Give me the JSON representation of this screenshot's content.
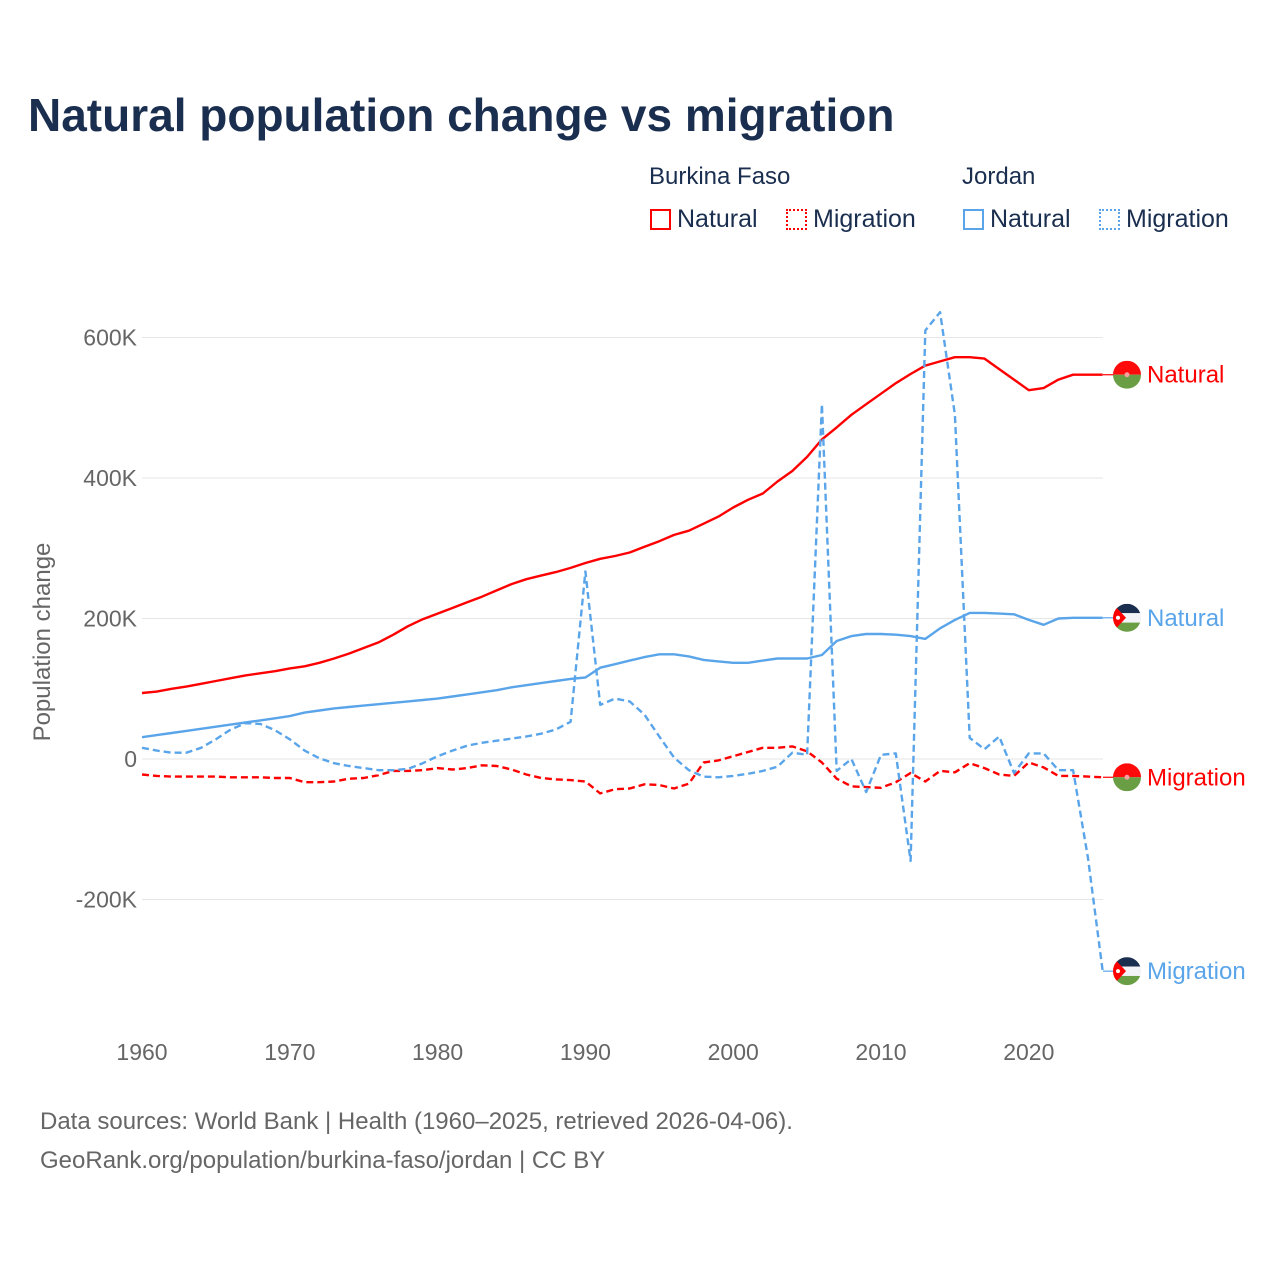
{
  "title": "Natural population change vs migration",
  "legend": {
    "groups": [
      {
        "name": "Burkina Faso",
        "items": [
          "Natural",
          "Migration"
        ]
      },
      {
        "name": "Jordan",
        "items": [
          "Natural",
          "Migration"
        ]
      }
    ]
  },
  "colors": {
    "burkina": "#ff0000",
    "jordan": "#5aa5ea"
  },
  "footer": {
    "line1": "Data sources: World Bank | Health (1960–2025, retrieved 2026-04-06).",
    "line2": "GeoRank.org/population/burkina-faso/jordan | CC BY"
  },
  "chart_data": {
    "type": "line",
    "title": "Natural population change vs migration",
    "xlabel": "",
    "ylabel": "Population change",
    "xlim": [
      1960,
      2025
    ],
    "ylim": [
      -300000,
      650000
    ],
    "x_ticks": [
      1960,
      1970,
      1980,
      1990,
      2000,
      2010,
      2020
    ],
    "x_tick_labels": [
      "1960",
      "1970",
      "1980",
      "1990",
      "2000",
      "2010",
      "2020"
    ],
    "y_ticks": [
      -200000,
      0,
      200000,
      400000,
      600000
    ],
    "y_tick_labels": [
      "-200K",
      "0",
      "200K",
      "400K",
      "600K"
    ],
    "grid": true,
    "legend_placement": "top-right",
    "x": [
      1960,
      1961,
      1962,
      1963,
      1964,
      1965,
      1966,
      1967,
      1968,
      1969,
      1970,
      1971,
      1972,
      1973,
      1974,
      1975,
      1976,
      1977,
      1978,
      1979,
      1980,
      1981,
      1982,
      1983,
      1984,
      1985,
      1986,
      1987,
      1988,
      1989,
      1990,
      1991,
      1992,
      1993,
      1994,
      1995,
      1996,
      1997,
      1998,
      1999,
      2000,
      2001,
      2002,
      2003,
      2004,
      2005,
      2006,
      2007,
      2008,
      2009,
      2010,
      2011,
      2012,
      2013,
      2014,
      2015,
      2016,
      2017,
      2018,
      2019,
      2020,
      2021,
      2022,
      2023,
      2024,
      2025
    ],
    "series": [
      {
        "name": "Burkina Faso Natural",
        "country": "Burkina Faso",
        "kind": "Natural",
        "end_label": "Natural",
        "color": "#ff0000",
        "dashed": false,
        "values": [
          94000,
          96000,
          100000,
          103000,
          107000,
          111000,
          115000,
          119000,
          122000,
          125000,
          129000,
          132000,
          137000,
          143000,
          150000,
          158000,
          166000,
          177000,
          189000,
          199000,
          207000,
          215000,
          223000,
          231000,
          240000,
          249000,
          256000,
          261000,
          266000,
          272000,
          279000,
          285000,
          289000,
          294000,
          302000,
          310000,
          319000,
          325000,
          335000,
          345000,
          358000,
          369000,
          378000,
          395000,
          410000,
          430000,
          455000,
          472000,
          490000,
          505000,
          520000,
          535000,
          548000,
          560000,
          566000,
          572000,
          572000,
          570000,
          555000,
          540000,
          525000,
          528000,
          540000,
          547000,
          547000,
          547000
        ]
      },
      {
        "name": "Burkina Faso Migration",
        "country": "Burkina Faso",
        "kind": "Migration",
        "end_label": "Migration",
        "color": "#ff0000",
        "dashed": true,
        "values": [
          -22000,
          -24000,
          -25000,
          -25000,
          -25000,
          -25000,
          -26000,
          -26000,
          -26000,
          -27000,
          -27000,
          -33000,
          -33000,
          -32000,
          -28000,
          -27000,
          -23000,
          -17000,
          -17000,
          -16000,
          -13000,
          -15000,
          -13000,
          -9000,
          -10000,
          -15000,
          -22000,
          -27000,
          -29000,
          -30000,
          -32000,
          -49000,
          -43000,
          -42000,
          -36000,
          -37000,
          -42000,
          -35000,
          -5000,
          -2000,
          4000,
          10000,
          16000,
          16000,
          18000,
          11000,
          -5000,
          -28000,
          -39000,
          -40000,
          -41000,
          -33000,
          -20000,
          -32000,
          -17000,
          -19000,
          -6000,
          -13000,
          -22000,
          -24000,
          -5000,
          -12000,
          -24000,
          -24000,
          -25000,
          -26000
        ]
      },
      {
        "name": "Jordan Natural",
        "country": "Jordan",
        "kind": "Natural",
        "end_label": "Natural",
        "color": "#5aa5ea",
        "dashed": false,
        "values": [
          31000,
          34000,
          37000,
          40000,
          43000,
          46000,
          49000,
          52000,
          55000,
          58000,
          61000,
          66000,
          69000,
          72000,
          74000,
          76000,
          78000,
          80000,
          82000,
          84000,
          86000,
          89000,
          92000,
          95000,
          98000,
          102000,
          105000,
          108000,
          111000,
          114000,
          116000,
          130000,
          135000,
          140000,
          145000,
          149000,
          149000,
          146000,
          141000,
          139000,
          137000,
          137000,
          140000,
          143000,
          143000,
          143000,
          148000,
          168000,
          175000,
          178000,
          178000,
          177000,
          175000,
          171000,
          186000,
          198000,
          208000,
          208000,
          207000,
          206000,
          198000,
          191000,
          200000,
          201000,
          201000,
          201000
        ]
      },
      {
        "name": "Jordan Migration",
        "country": "Jordan",
        "kind": "Migration",
        "end_label": "Migration",
        "color": "#5aa5ea",
        "dashed": true,
        "values": [
          16000,
          12000,
          9000,
          9000,
          16000,
          28000,
          42000,
          51000,
          50000,
          41000,
          28000,
          12000,
          1000,
          -6000,
          -10000,
          -13000,
          -16000,
          -16000,
          -14000,
          -6000,
          4000,
          12000,
          19000,
          23000,
          26000,
          29000,
          32000,
          36000,
          42000,
          53000,
          267000,
          77000,
          86000,
          82000,
          63000,
          32000,
          2000,
          -16000,
          -25000,
          -26000,
          -24000,
          -21000,
          -17000,
          -11000,
          9000,
          6000,
          505000,
          -17000,
          0,
          -47000,
          6000,
          8000,
          -145000,
          610000,
          636000,
          490000,
          30000,
          14000,
          32000,
          -20000,
          8000,
          8000,
          -16000,
          -16000,
          -140000,
          -302000
        ]
      }
    ]
  }
}
